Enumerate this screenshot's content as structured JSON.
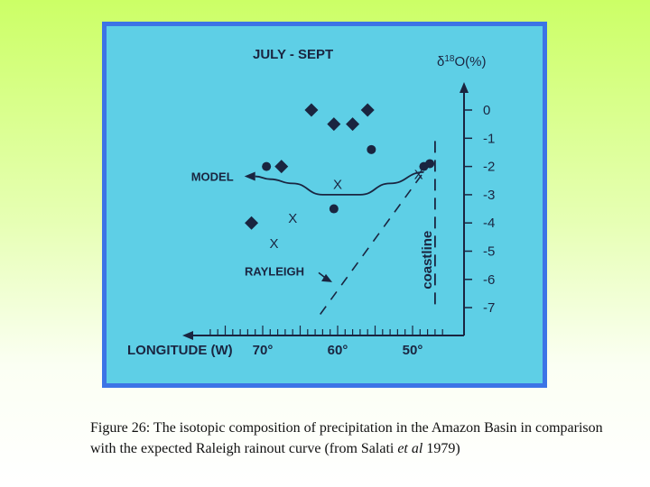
{
  "chart_data": {
    "type": "scatter",
    "title": "JULY - SEPT",
    "xlabel": "LONGITUDE (W)",
    "ylabel_symbol": "δ",
    "ylabel_sup": "18",
    "ylabel_rest": "O(%)",
    "xlim": [
      79,
      44
    ],
    "ylim": [
      -8,
      1
    ],
    "x_reversed": true,
    "grid": false,
    "x_tick_labels": [
      {
        "x": 70,
        "label": "70°"
      },
      {
        "x": 60,
        "label": "60°"
      },
      {
        "x": 50,
        "label": "50°"
      }
    ],
    "y_tick_labels": [
      {
        "y": 0,
        "label": "0"
      },
      {
        "y": -1,
        "label": "-1"
      },
      {
        "y": -2,
        "label": "-2"
      },
      {
        "y": -3,
        "label": "-3"
      },
      {
        "y": -4,
        "label": "-4"
      },
      {
        "y": -5,
        "label": "-5"
      },
      {
        "y": -6,
        "label": "-6"
      },
      {
        "y": -7,
        "label": "-7"
      }
    ],
    "series": [
      {
        "marker": "diamond",
        "points": [
          [
            63.5,
            0
          ],
          [
            60.5,
            -0.5
          ],
          [
            58,
            -0.5
          ],
          [
            56,
            0
          ],
          [
            67.5,
            -2
          ],
          [
            71.5,
            -4
          ]
        ]
      },
      {
        "marker": "circle",
        "points": [
          [
            69.5,
            -2
          ],
          [
            55.5,
            -1.4
          ],
          [
            60.5,
            -3.5
          ],
          [
            48.5,
            -2
          ],
          [
            47.7,
            -1.9
          ]
        ]
      },
      {
        "marker": "x",
        "points": [
          [
            60,
            -2.6
          ],
          [
            66,
            -3.8
          ],
          [
            68.5,
            -4.7
          ],
          [
            49.2,
            -2.25
          ]
        ]
      }
    ],
    "coastline_x": 47,
    "coastline_label": "coastline",
    "model_label": "MODEL",
    "model_curve": [
      [
        48.5,
        -2.2
      ],
      [
        53,
        -2.6
      ],
      [
        57,
        -3.0
      ],
      [
        62,
        -3.0
      ],
      [
        66,
        -2.6
      ],
      [
        69,
        -2.45
      ],
      [
        71,
        -2.35
      ]
    ],
    "rayleigh_label": "RAYLEIGH",
    "rayleigh_line": [
      [
        48.8,
        -2.3
      ],
      [
        62.5,
        -7.3
      ]
    ]
  },
  "caption": {
    "lead": "Figure 26: The isotopic composition of precipitation in the Amazon Basin in comparison with the expected Raleigh rainout curve (from Salati ",
    "italic": "et al",
    "tail": " 1979)"
  }
}
